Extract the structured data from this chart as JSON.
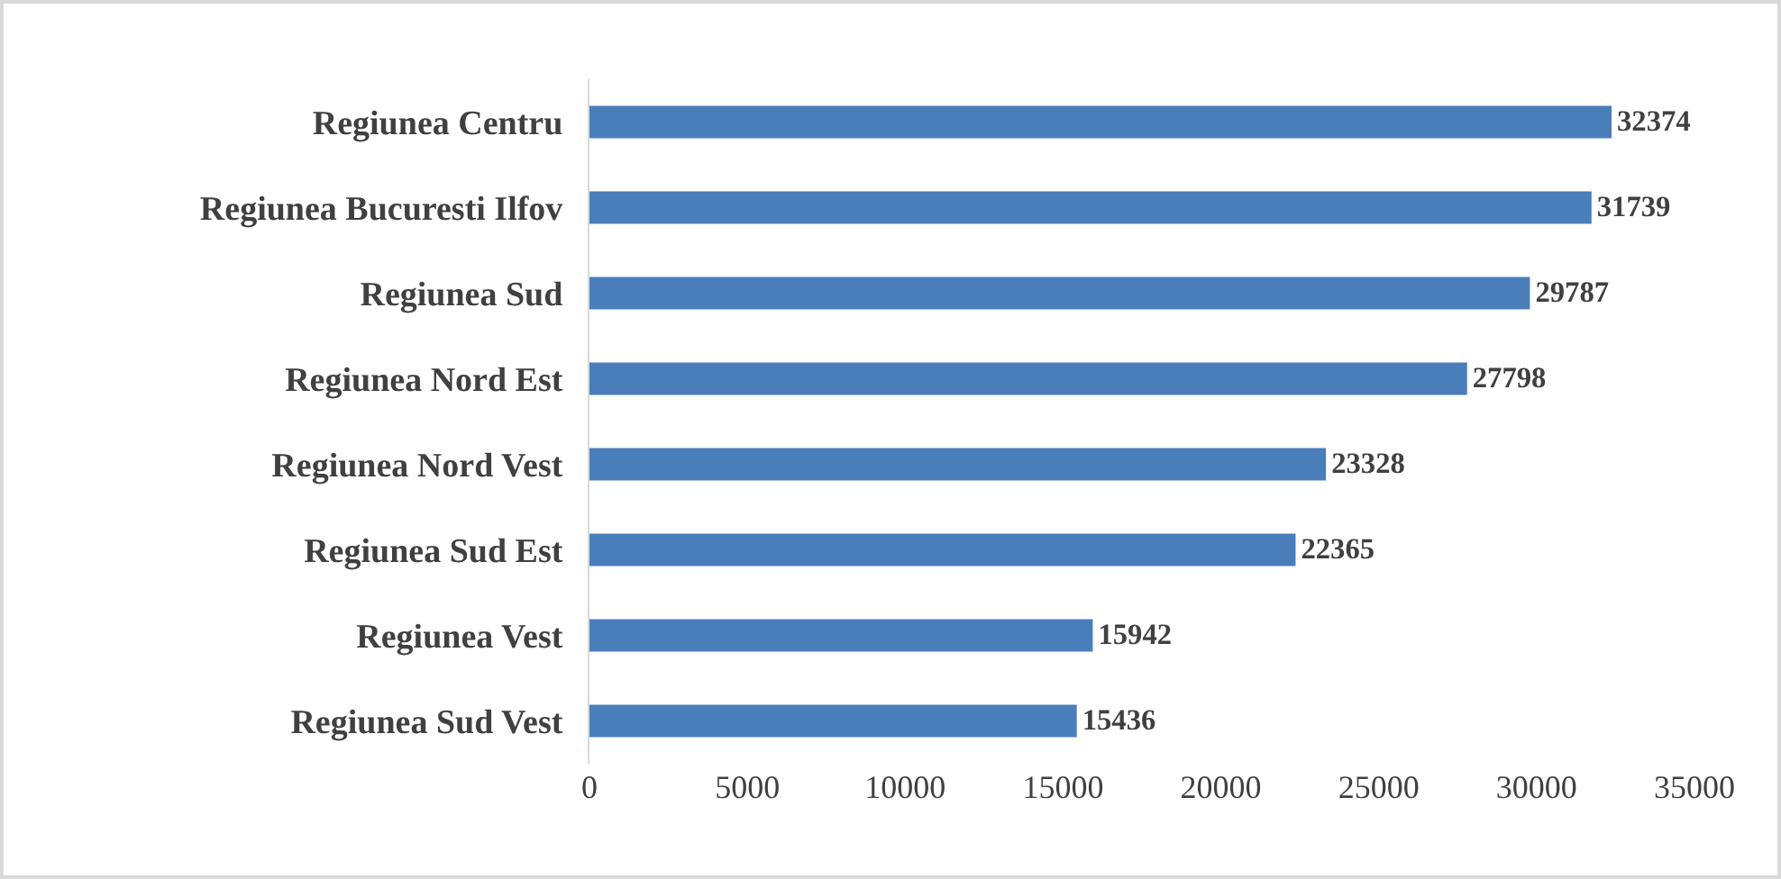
{
  "chart_data": {
    "type": "bar",
    "orientation": "horizontal",
    "categories": [
      "Regiunea Centru",
      "Regiunea Bucuresti Ilfov",
      "Regiunea Sud",
      "Regiunea Nord Est",
      "Regiunea Nord Vest",
      "Regiunea Sud Est",
      "Regiunea Vest",
      "Regiunea Sud Vest"
    ],
    "values": [
      32374,
      31739,
      29787,
      27798,
      23328,
      22365,
      15942,
      15436
    ],
    "color": "#4a7ebb",
    "xlim": [
      0,
      35000
    ],
    "xticks": [
      0,
      5000,
      10000,
      15000,
      20000,
      25000,
      30000,
      35000
    ],
    "grid": false,
    "data_labels": true
  }
}
